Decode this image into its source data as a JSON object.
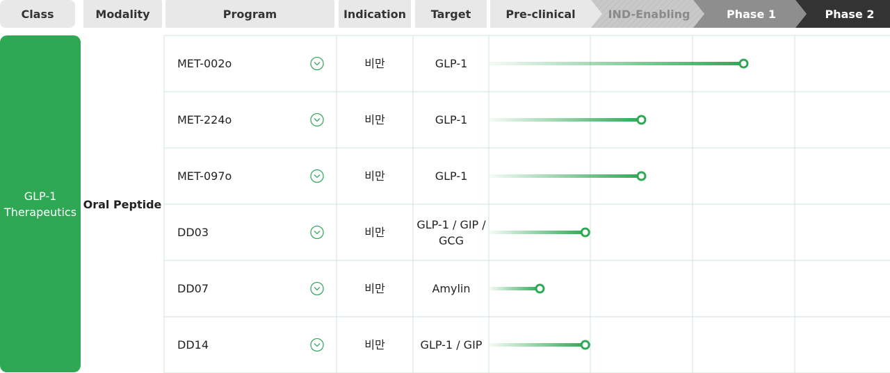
{
  "headers": [
    "Class",
    "Modality",
    "Program",
    "Indication",
    "Target"
  ],
  "stages": [
    "Pre-clinical",
    "IND-Enabling",
    "Phase 1",
    "Phase 2"
  ],
  "class": "GLP-1 Therapeutics",
  "modality": "Oral Peptide",
  "rows": [
    {
      "program": "MET-002o",
      "indication": "비만",
      "target": "GLP-1",
      "progress": 2.5
    },
    {
      "program": "MET-224o",
      "indication": "비만",
      "target": "GLP-1",
      "progress": 1.5
    },
    {
      "program": "MET-097o",
      "indication": "비만",
      "target": "GLP-1",
      "progress": 1.5
    },
    {
      "program": "DD03",
      "indication": "비만",
      "target": "GLP-1 / GIP / GCG",
      "progress": 0.95
    },
    {
      "program": "DD07",
      "indication": "비만",
      "target": "Amylin",
      "progress": 0.5
    },
    {
      "program": "DD14",
      "indication": "비만",
      "target": "GLP-1 / GIP",
      "progress": 0.95
    }
  ]
}
